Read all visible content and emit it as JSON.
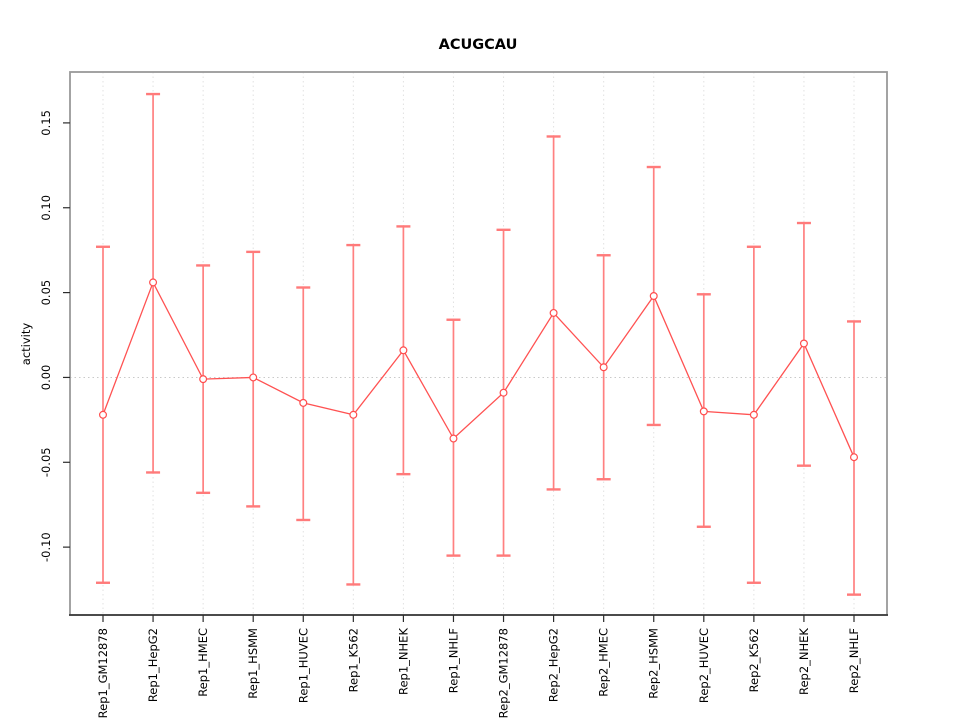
{
  "title": "ACUGCAU",
  "colors": {
    "series_line": "#ff5252",
    "point_stroke": "#ff4d4d",
    "point_fill": "#ffffff",
    "error_bar": "#ff8080",
    "error_cap": "#ff7a7a",
    "gridline": "#e2e2e2",
    "zero_line": "#c9c9c9",
    "plot_border": "#999999",
    "axis": "#2b2b2b",
    "text": "#000000"
  },
  "chart_data": {
    "type": "line",
    "subtype": "points-with-error-bars",
    "title": "ACUGCAU",
    "xlabel": "",
    "ylabel": "activity",
    "legend": "none",
    "grid": "vertical-dotted",
    "zero_line_dotted": true,
    "point_style": "open-circle",
    "ylim": [
      -0.14,
      0.18
    ],
    "yticks": [
      -0.1,
      -0.05,
      0.0,
      0.05,
      0.1,
      0.15
    ],
    "categories": [
      "Rep1_GM12878",
      "Rep1_HepG2",
      "Rep1_HMEC",
      "Rep1_HSMM",
      "Rep1_HUVEC",
      "Rep1_K562",
      "Rep1_NHEK",
      "Rep1_NHLF",
      "Rep2_GM12878",
      "Rep2_HepG2",
      "Rep2_HMEC",
      "Rep2_HSMM",
      "Rep2_HUVEC",
      "Rep2_K562",
      "Rep2_NHEK",
      "Rep2_NHLF"
    ],
    "series": [
      {
        "name": "activity",
        "values": [
          -0.022,
          0.056,
          -0.001,
          0.0,
          -0.015,
          -0.022,
          0.016,
          -0.036,
          -0.009,
          0.038,
          0.006,
          0.048,
          -0.02,
          -0.022,
          0.02,
          -0.047
        ],
        "error_high": [
          0.077,
          0.167,
          0.066,
          0.074,
          0.053,
          0.078,
          0.089,
          0.034,
          0.087,
          0.142,
          0.072,
          0.124,
          0.049,
          0.077,
          0.091,
          0.033
        ],
        "error_low": [
          -0.121,
          -0.056,
          -0.068,
          -0.076,
          -0.084,
          -0.122,
          -0.057,
          -0.105,
          -0.105,
          -0.066,
          -0.06,
          -0.028,
          -0.088,
          -0.121,
          -0.052,
          -0.128
        ]
      }
    ]
  }
}
